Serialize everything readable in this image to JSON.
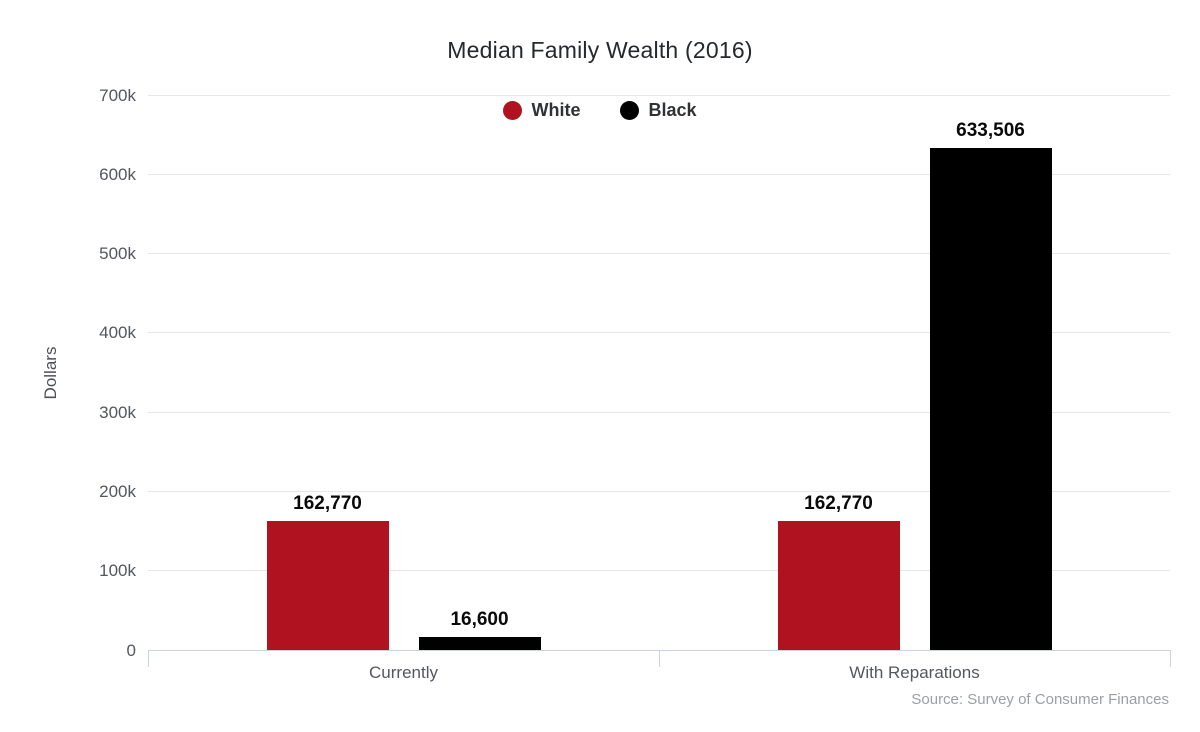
{
  "chart_data": {
    "type": "bar",
    "title": "Median Family Wealth (2016)",
    "ylabel": "Dollars",
    "xlabel": "",
    "categories": [
      "Currently",
      "With Reparations"
    ],
    "series": [
      {
        "name": "White",
        "color": "#b0121f",
        "values": [
          162770,
          162770
        ],
        "labels": [
          "162,770",
          "162,770"
        ]
      },
      {
        "name": "Black",
        "color": "#000000",
        "values": [
          16600,
          633506
        ],
        "labels": [
          "16,600",
          "633,506"
        ]
      }
    ],
    "ylim": [
      0,
      700000
    ],
    "yticks": [
      {
        "value": 0,
        "label": "0"
      },
      {
        "value": 100000,
        "label": "100k"
      },
      {
        "value": 200000,
        "label": "200k"
      },
      {
        "value": 300000,
        "label": "300k"
      },
      {
        "value": 400000,
        "label": "400k"
      },
      {
        "value": 500000,
        "label": "500k"
      },
      {
        "value": 600000,
        "label": "600k"
      },
      {
        "value": 700000,
        "label": "700k"
      }
    ],
    "grid": true,
    "legend_position": "top-center",
    "source": "Source: Survey of Consumer Finances",
    "colors": {
      "background": "#ffffff",
      "grid_color": "#e7e7e7",
      "axis_color": "#ccd3e0",
      "tick_text_color": "#54575c",
      "title_color": "#25282c",
      "value_label_color": "#0a0a0a",
      "source_color": "#9aa0a6"
    }
  }
}
